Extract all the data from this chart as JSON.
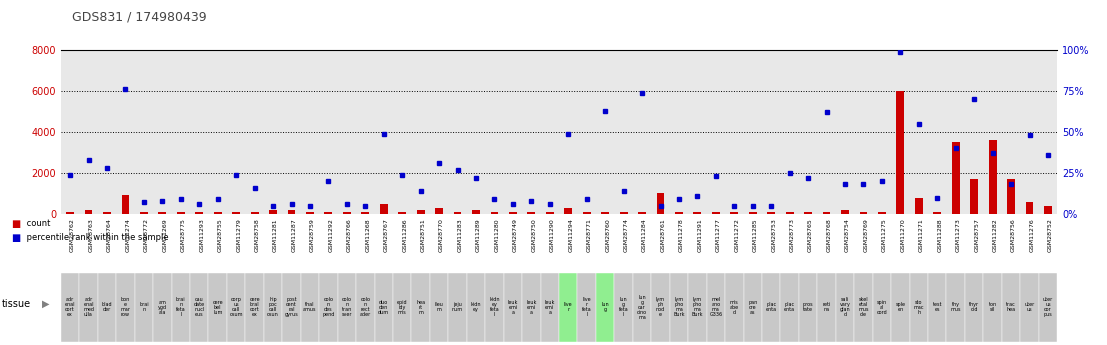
{
  "title": "GDS831 / 174980439",
  "samples": [
    {
      "gsm": "GSM28762",
      "tissue": "adr\nenal\ncort\nex",
      "count": 100,
      "pct": 24,
      "highlight": false
    },
    {
      "gsm": "GSM28763",
      "tissue": "adr\nenal\nmed\nulla",
      "count": 200,
      "pct": 33,
      "highlight": false
    },
    {
      "gsm": "GSM28764",
      "tissue": "blad\nder",
      "count": 100,
      "pct": 28,
      "highlight": false
    },
    {
      "gsm": "GSM11274",
      "tissue": "bon\ne\nmar\nrow",
      "count": 900,
      "pct": 76,
      "highlight": false
    },
    {
      "gsm": "GSM28772",
      "tissue": "brai\nn",
      "count": 100,
      "pct": 7,
      "highlight": false
    },
    {
      "gsm": "GSM11269",
      "tissue": "am\nygd\nala",
      "count": 100,
      "pct": 8,
      "highlight": false
    },
    {
      "gsm": "GSM28775",
      "tissue": "brai\nn\nfeta\nl",
      "count": 100,
      "pct": 9,
      "highlight": false
    },
    {
      "gsm": "GSM11293",
      "tissue": "cau\ndate\nnucl\neus",
      "count": 100,
      "pct": 6,
      "highlight": false
    },
    {
      "gsm": "GSM28755",
      "tissue": "cere\nbel\nlum",
      "count": 100,
      "pct": 9,
      "highlight": false
    },
    {
      "gsm": "GSM11279",
      "tissue": "corp\nus\ncall\nosum",
      "count": 100,
      "pct": 24,
      "highlight": false
    },
    {
      "gsm": "GSM28758",
      "tissue": "cere\nbral\ncort\nex",
      "count": 100,
      "pct": 16,
      "highlight": false
    },
    {
      "gsm": "GSM11281",
      "tissue": "hip\npoc\ncall\nosun",
      "count": 200,
      "pct": 5,
      "highlight": false
    },
    {
      "gsm": "GSM11287",
      "tissue": "post\ncent\nral\ngyrus",
      "count": 200,
      "pct": 6,
      "highlight": false
    },
    {
      "gsm": "GSM28759",
      "tissue": "thal\namus",
      "count": 100,
      "pct": 5,
      "highlight": false
    },
    {
      "gsm": "GSM11292",
      "tissue": "colo\nn\ndes\npend",
      "count": 100,
      "pct": 20,
      "highlight": false
    },
    {
      "gsm": "GSM28766",
      "tissue": "colo\nn\ntran\nsver",
      "count": 100,
      "pct": 6,
      "highlight": false
    },
    {
      "gsm": "GSM11268",
      "tissue": "colo\nn\nrect\nader",
      "count": 100,
      "pct": 5,
      "highlight": false
    },
    {
      "gsm": "GSM28767",
      "tissue": "duo\nden\ndum",
      "count": 500,
      "pct": 49,
      "highlight": false
    },
    {
      "gsm": "GSM11286",
      "tissue": "epid\nidy\nmis",
      "count": 100,
      "pct": 24,
      "highlight": false
    },
    {
      "gsm": "GSM28751",
      "tissue": "hea\nrt\nm",
      "count": 200,
      "pct": 14,
      "highlight": false
    },
    {
      "gsm": "GSM28770",
      "tissue": "ileu\nm",
      "count": 300,
      "pct": 31,
      "highlight": false
    },
    {
      "gsm": "GSM11283",
      "tissue": "jeju\nnum",
      "count": 100,
      "pct": 27,
      "highlight": false
    },
    {
      "gsm": "GSM11289",
      "tissue": "kidn\ney",
      "count": 200,
      "pct": 22,
      "highlight": false
    },
    {
      "gsm": "GSM11280",
      "tissue": "kidn\ney\nfeta\nl",
      "count": 100,
      "pct": 9,
      "highlight": false
    },
    {
      "gsm": "GSM28749",
      "tissue": "leuk\nemi\na",
      "count": 100,
      "pct": 6,
      "highlight": false
    },
    {
      "gsm": "GSM28750",
      "tissue": "leuk\nemi\na",
      "count": 100,
      "pct": 8,
      "highlight": false
    },
    {
      "gsm": "GSM11290",
      "tissue": "leuk\nemi\na",
      "count": 100,
      "pct": 6,
      "highlight": false
    },
    {
      "gsm": "GSM11294",
      "tissue": "live\nr",
      "count": 300,
      "pct": 49,
      "highlight": true
    },
    {
      "gsm": "GSM28771",
      "tissue": "live\nr\nfeta\nl",
      "count": 100,
      "pct": 9,
      "highlight": false
    },
    {
      "gsm": "GSM28760",
      "tissue": "lun\ng",
      "count": 100,
      "pct": 63,
      "highlight": true
    },
    {
      "gsm": "GSM28774",
      "tissue": "lun\ng\nfeta\nl",
      "count": 100,
      "pct": 14,
      "highlight": false
    },
    {
      "gsm": "GSM11284",
      "tissue": "lun\ng\ncar\ncino\nma",
      "count": 100,
      "pct": 74,
      "highlight": false
    },
    {
      "gsm": "GSM28761",
      "tissue": "lym\nph\nnod\ne",
      "count": 1000,
      "pct": 5,
      "highlight": false
    },
    {
      "gsm": "GSM11278",
      "tissue": "lym\npho\nma\nBurk",
      "count": 100,
      "pct": 9,
      "highlight": false
    },
    {
      "gsm": "GSM11291",
      "tissue": "lym\npho\nma\nBurk",
      "count": 100,
      "pct": 11,
      "highlight": false
    },
    {
      "gsm": "GSM11277",
      "tissue": "mel\nano\nma\nG336",
      "count": 100,
      "pct": 23,
      "highlight": false
    },
    {
      "gsm": "GSM11272",
      "tissue": "mis\nabe\nd",
      "count": 100,
      "pct": 5,
      "highlight": false
    },
    {
      "gsm": "GSM11285",
      "tissue": "pan\ncre\nas",
      "count": 100,
      "pct": 5,
      "highlight": false
    },
    {
      "gsm": "GSM28753",
      "tissue": "plac\nenta",
      "count": 100,
      "pct": 5,
      "highlight": false
    },
    {
      "gsm": "GSM28773",
      "tissue": "plac\nenta",
      "count": 100,
      "pct": 25,
      "highlight": false
    },
    {
      "gsm": "GSM28765",
      "tissue": "pros\ntate",
      "count": 100,
      "pct": 22,
      "highlight": false
    },
    {
      "gsm": "GSM28768",
      "tissue": "reti\nna",
      "count": 100,
      "pct": 62,
      "highlight": false
    },
    {
      "gsm": "GSM28754",
      "tissue": "sali\nvary\nglan\nd",
      "count": 200,
      "pct": 18,
      "highlight": false
    },
    {
      "gsm": "GSM28769",
      "tissue": "skel\netal\nmus\ncle",
      "count": 100,
      "pct": 18,
      "highlight": false
    },
    {
      "gsm": "GSM11275",
      "tissue": "spin\nal\ncord",
      "count": 100,
      "pct": 20,
      "highlight": false
    },
    {
      "gsm": "GSM11270",
      "tissue": "sple\nen",
      "count": 6000,
      "pct": 99,
      "highlight": false
    },
    {
      "gsm": "GSM11271",
      "tissue": "sto\nmac\nh",
      "count": 800,
      "pct": 55,
      "highlight": false
    },
    {
      "gsm": "GSM11288",
      "tissue": "test\nes",
      "count": 100,
      "pct": 10,
      "highlight": false
    },
    {
      "gsm": "GSM11273",
      "tissue": "thy\nmus",
      "count": 3500,
      "pct": 40,
      "highlight": false
    },
    {
      "gsm": "GSM28757",
      "tissue": "thyr\noid",
      "count": 1700,
      "pct": 70,
      "highlight": false
    },
    {
      "gsm": "GSM11282",
      "tissue": "ton\nsil",
      "count": 3600,
      "pct": 37,
      "highlight": false
    },
    {
      "gsm": "GSM28756",
      "tissue": "trac\nhea",
      "count": 1700,
      "pct": 18,
      "highlight": false
    },
    {
      "gsm": "GSM11276",
      "tissue": "uter\nus",
      "count": 600,
      "pct": 48,
      "highlight": false
    },
    {
      "gsm": "GSM28752",
      "tissue": "uter\nus\ncor\npus",
      "count": 400,
      "pct": 36,
      "highlight": false
    }
  ],
  "ylim_left": [
    0,
    8000
  ],
  "ylim_right": [
    0,
    100
  ],
  "yticks_left": [
    0,
    2000,
    4000,
    6000,
    8000
  ],
  "yticks_right": [
    0,
    25,
    50,
    75,
    100
  ],
  "bar_color": "#cc0000",
  "dot_color": "#0000cc",
  "bg_color_normal": "#c8c8c8",
  "bg_color_highlight": "#90ee90",
  "title_color": "#444444",
  "left_axis_color": "#cc0000",
  "right_axis_color": "#0000cc"
}
